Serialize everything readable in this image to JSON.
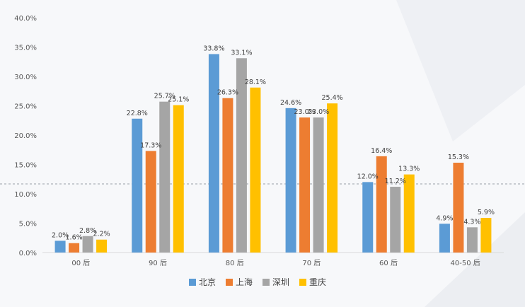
{
  "chart_data": {
    "type": "bar",
    "categories": [
      "00 后",
      "90 后",
      "80 后",
      "70 后",
      "60 后",
      "40-50 后"
    ],
    "series": [
      {
        "name": "北京",
        "color": "#5b9bd5",
        "values": [
          2.0,
          22.8,
          33.8,
          24.6,
          12.0,
          4.9
        ]
      },
      {
        "name": "上海",
        "color": "#ed7d31",
        "values": [
          1.6,
          17.3,
          26.3,
          23.0,
          16.4,
          15.3
        ]
      },
      {
        "name": "深圳",
        "color": "#a5a5a5",
        "values": [
          2.8,
          25.7,
          33.1,
          23.0,
          11.2,
          4.3
        ]
      },
      {
        "name": "重庆",
        "color": "#ffc000",
        "values": [
          2.2,
          25.1,
          28.1,
          25.4,
          13.3,
          5.9
        ]
      }
    ],
    "y_ticks": [
      "0.0%",
      "5.0%",
      "10.0%",
      "15.0%",
      "20.0%",
      "25.0%",
      "30.0%",
      "35.0%",
      "40.0%"
    ],
    "ylim": [
      0,
      40
    ],
    "value_suffix": "%",
    "legend_position": "bottom",
    "grid": false
  }
}
